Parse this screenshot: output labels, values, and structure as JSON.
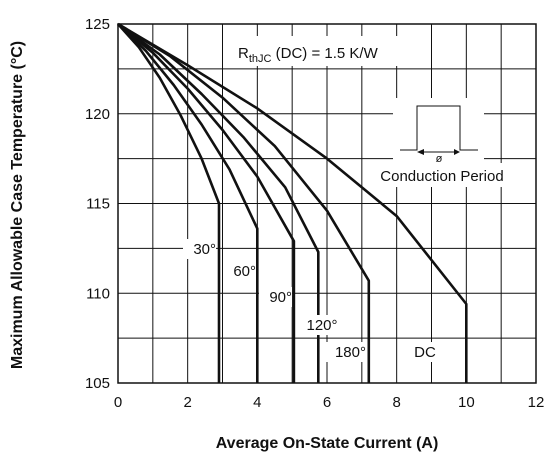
{
  "chart_data": {
    "type": "line",
    "xlabel": "Average On-State Current (A)",
    "ylabel": "Maximum Allowable Case Temperature (°C)",
    "xlim": [
      0,
      12
    ],
    "ylim": [
      105,
      125
    ],
    "x_ticks": [
      "0",
      "2",
      "4",
      "6",
      "8",
      "10",
      "12"
    ],
    "y_ticks": [
      "105",
      "110",
      "115",
      "120",
      "125"
    ],
    "grid": true,
    "series": [
      {
        "name": "30°",
        "points": [
          [
            0,
            125
          ],
          [
            0.6,
            123.7
          ],
          [
            1.2,
            122.0
          ],
          [
            1.8,
            119.9
          ],
          [
            2.4,
            117.5
          ],
          [
            2.9,
            115.0
          ],
          [
            2.9,
            105
          ]
        ]
      },
      {
        "name": "60°",
        "points": [
          [
            0,
            125
          ],
          [
            0.8,
            123.5
          ],
          [
            1.6,
            121.6
          ],
          [
            2.4,
            119.4
          ],
          [
            3.2,
            116.9
          ],
          [
            4.0,
            113.6
          ],
          [
            4.0,
            105
          ]
        ]
      },
      {
        "name": "90°",
        "points": [
          [
            0,
            125
          ],
          [
            1.0,
            123.4
          ],
          [
            2.0,
            121.4
          ],
          [
            3.0,
            119.1
          ],
          [
            4.0,
            116.5
          ],
          [
            5.05,
            112.9
          ],
          [
            5.05,
            105
          ]
        ]
      },
      {
        "name": "120°",
        "points": [
          [
            0,
            125
          ],
          [
            1.2,
            123.3
          ],
          [
            2.4,
            121.1
          ],
          [
            3.6,
            118.7
          ],
          [
            4.8,
            115.9
          ],
          [
            5.75,
            112.3
          ],
          [
            5.75,
            105
          ]
        ]
      },
      {
        "name": "180°",
        "points": [
          [
            0,
            125
          ],
          [
            1.5,
            123.2
          ],
          [
            3.0,
            120.9
          ],
          [
            4.5,
            118.2
          ],
          [
            6.0,
            114.6
          ],
          [
            7.2,
            110.7
          ],
          [
            7.2,
            105
          ]
        ]
      },
      {
        "name": "DC",
        "points": [
          [
            0,
            125
          ],
          [
            2.0,
            122.7
          ],
          [
            4.0,
            120.3
          ],
          [
            6.0,
            117.5
          ],
          [
            8.0,
            114.3
          ],
          [
            10.0,
            109.4
          ],
          [
            10.0,
            105
          ]
        ]
      }
    ],
    "annotations": {
      "rthjc_main": "R",
      "rthjc_sub": "thJC",
      "rthjc_rest": " (DC) = 1.5 K/W",
      "conduction": "Conduction Period",
      "phi": "ø"
    }
  }
}
